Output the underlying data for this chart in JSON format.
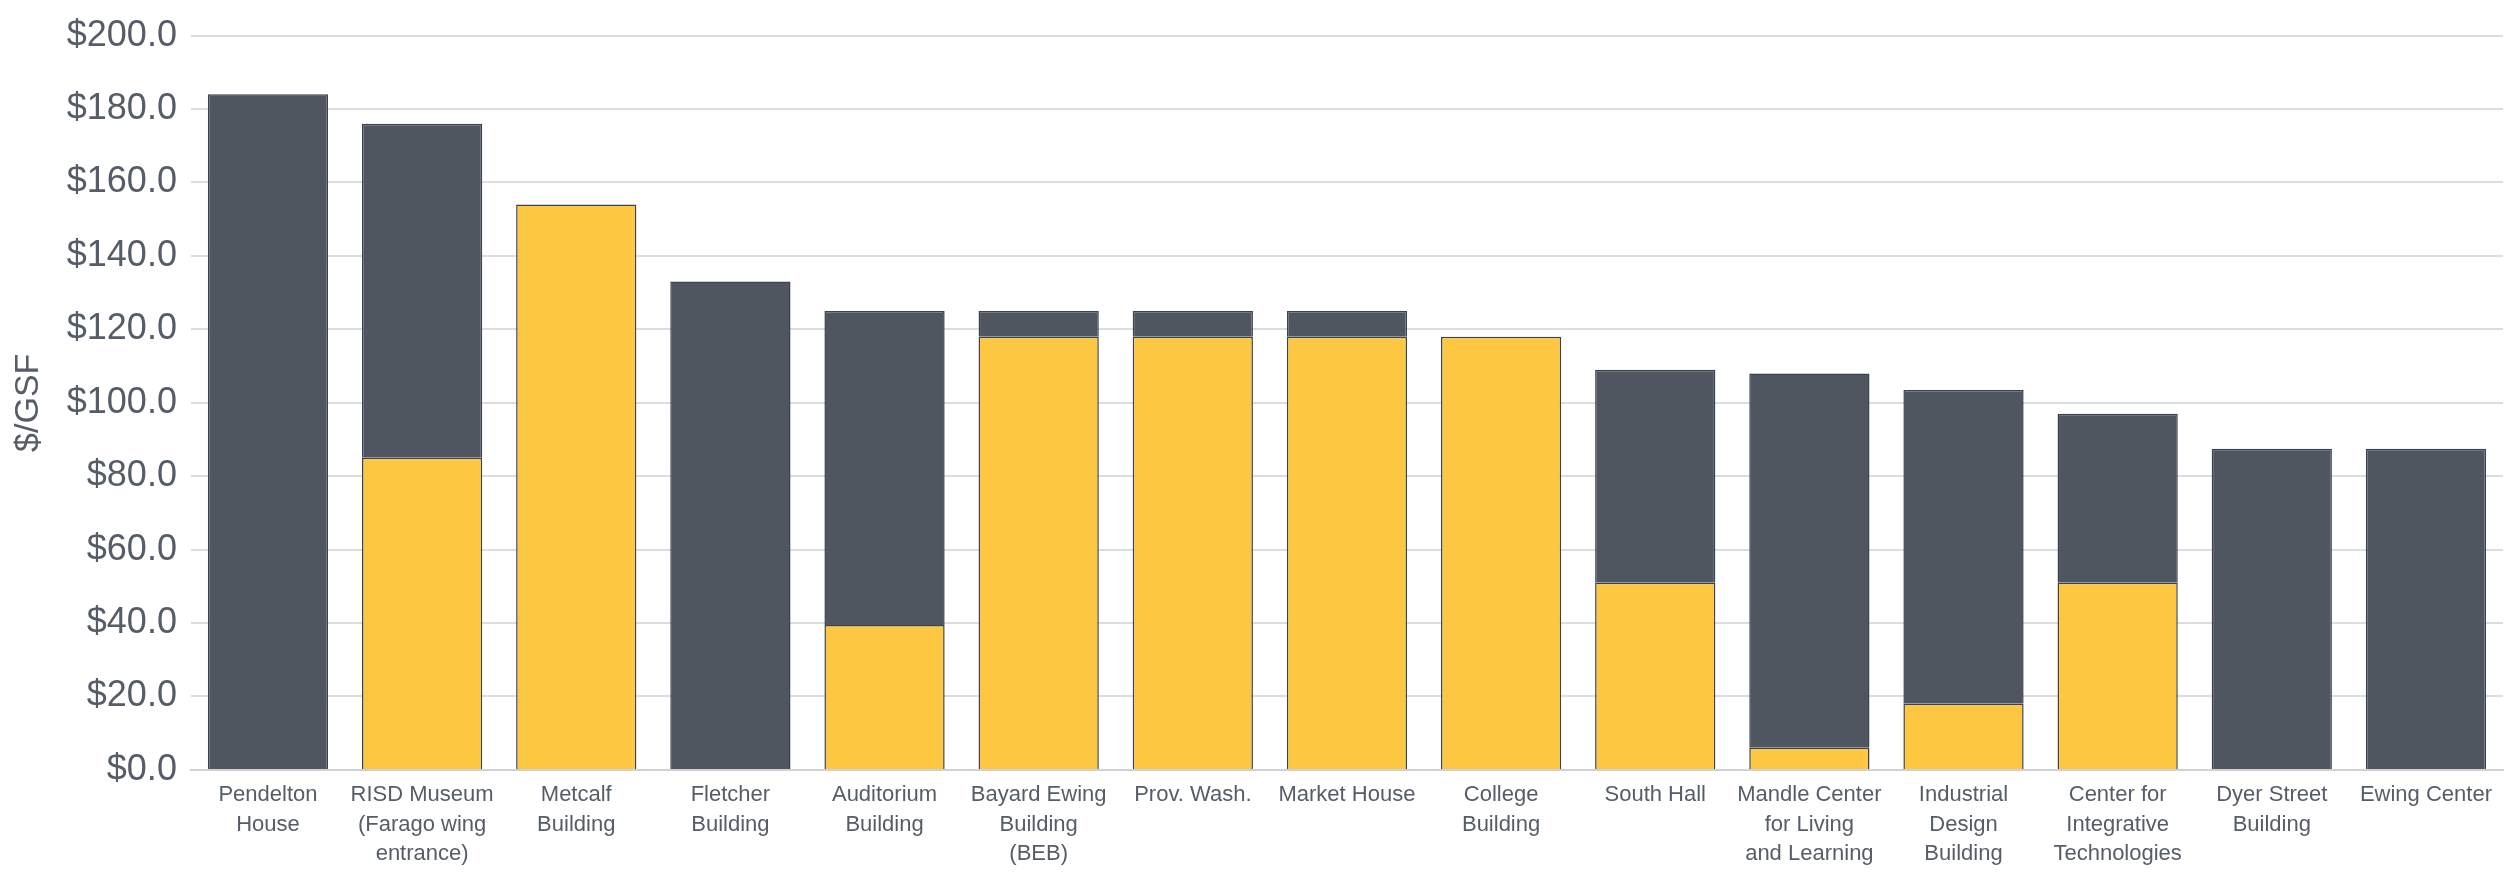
{
  "chart_data": {
    "type": "bar",
    "stacked": true,
    "ylabel": "$/GSF",
    "categories": [
      "Pendelton House",
      "RISD Museum (Farago wing entrance)",
      "Metcalf Building",
      "Fletcher Building",
      "Auditorium Building",
      "Bayard Ewing Building (BEB)",
      "Prov. Wash.",
      "Market House",
      "College Building",
      "South Hall",
      "Mandle Center for Living and Learning",
      "Industrial Design Building",
      "Center for Integrative Technologies",
      "Dyer Street Building",
      "Ewing Center"
    ],
    "series": [
      {
        "color": "#fdc741",
        "values": [
          null,
          85,
          154,
          null,
          39.5,
          118,
          118,
          118,
          118,
          51,
          6,
          18,
          51,
          null,
          null
        ]
      },
      {
        "color": "#4f5660",
        "values": [
          184,
          91,
          null,
          133,
          85.5,
          7,
          7,
          7,
          null,
          58,
          102,
          85.5,
          46,
          87.5,
          87.5
        ]
      }
    ],
    "ylim": [
      0,
      200
    ],
    "yticks": [
      {
        "value": 0,
        "label": "$0.0"
      },
      {
        "value": 20,
        "label": "$20.0"
      },
      {
        "value": 40,
        "label": "$40.0"
      },
      {
        "value": 60,
        "label": "$60.0"
      },
      {
        "value": 80,
        "label": "$80.0"
      },
      {
        "value": 100,
        "label": "$100.0"
      },
      {
        "value": 120,
        "label": "$120.0"
      },
      {
        "value": 140,
        "label": "$140.0"
      },
      {
        "value": 160,
        "label": "$160.0"
      },
      {
        "value": 180,
        "label": "$180.0"
      },
      {
        "value": 200,
        "label": "$200.0"
      }
    ],
    "grid": "y",
    "legend": false
  }
}
